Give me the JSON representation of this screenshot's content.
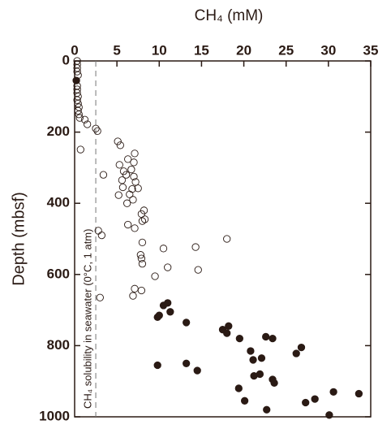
{
  "chart_data": {
    "type": "scatter",
    "x_label": "CH₄ (mM)",
    "y_label": "Depth (mbsf)",
    "annotation": "CH₄ solubility in seawater (0°C, 1 atm)",
    "reference_x": 2.5,
    "xlim": [
      0,
      35
    ],
    "xticks": [
      0,
      5,
      10,
      15,
      20,
      25,
      30,
      35
    ],
    "ylim": [
      0,
      1000
    ],
    "yticks": [
      0,
      200,
      400,
      600,
      800,
      1000
    ],
    "y_inverted": true,
    "series": [
      {
        "color": "#2a1a14",
        "filled": false,
        "x": [
          0.3,
          0.3,
          0.3,
          0.3,
          0.4,
          0.3,
          0.3,
          0.3,
          0.4,
          0.3,
          0.4,
          0.5,
          0.4,
          0.5,
          0.6,
          1.2,
          1.5,
          2.5,
          2.7,
          0.7,
          5.1,
          5.4,
          7.1,
          6.3,
          7.0,
          5.3,
          6.7,
          5.8,
          6.1,
          7.0,
          3.4,
          5.6,
          7.2,
          5.7,
          6.8,
          7.5,
          5.2,
          6.5,
          6.9,
          6.2,
          8.2,
          7.9,
          8.3,
          8.0,
          6.3,
          7.1,
          2.8,
          3.2,
          8.0,
          18.0,
          10.5,
          14.3,
          7.8,
          7.9,
          8.0,
          11.0,
          14.6,
          9.5,
          7.1,
          7.9,
          6.9,
          3.0
        ],
        "values": [
          0,
          10,
          20,
          30,
          40,
          70,
          80,
          90,
          100,
          110,
          120,
          130,
          140,
          150,
          160,
          165,
          178,
          190,
          197,
          249,
          226,
          237,
          260,
          276,
          285,
          292,
          305,
          310,
          320,
          325,
          320,
          335,
          340,
          355,
          360,
          358,
          377,
          375,
          390,
          400,
          420,
          430,
          445,
          450,
          460,
          470,
          477,
          490,
          510,
          500,
          527,
          523,
          545,
          555,
          570,
          580,
          587,
          605,
          640,
          645,
          660,
          665
        ]
      },
      {
        "color": "#2a1a14",
        "filled": true,
        "x": [
          0.2,
          10.5,
          11.0,
          9.8,
          10.0,
          11.3,
          13.2,
          17.5,
          18.2,
          18.0,
          19.5,
          22.6,
          23.4,
          26.8,
          26.2,
          20.8,
          21.1,
          22.1,
          21.2,
          21.9,
          23.4,
          23.6,
          9.8,
          13.2,
          14.5,
          19.4,
          20.1,
          22.7,
          27.3,
          28.4,
          30.6,
          33.6,
          30.1
        ],
        "values": [
          55,
          687,
          680,
          720,
          715,
          705,
          735,
          755,
          745,
          765,
          780,
          775,
          780,
          805,
          822,
          815,
          840,
          835,
          885,
          880,
          895,
          905,
          855,
          850,
          870,
          920,
          955,
          980,
          960,
          950,
          930,
          935,
          995
        ]
      }
    ]
  }
}
